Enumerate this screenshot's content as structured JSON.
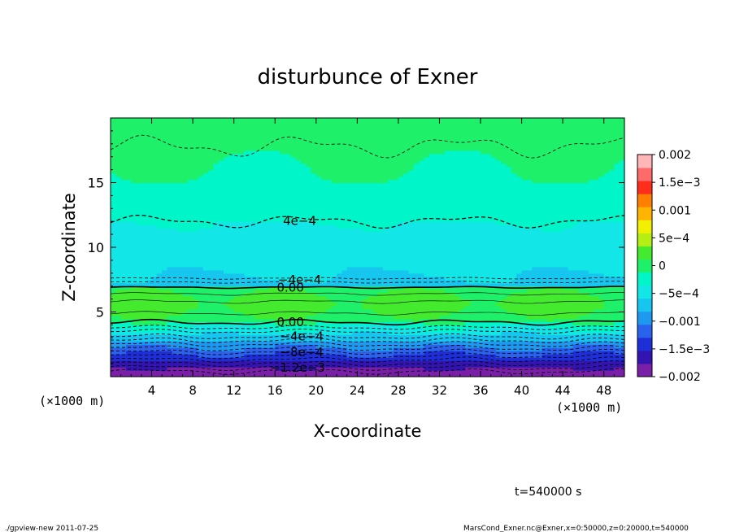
{
  "chart_data": {
    "type": "heatmap",
    "title": "disturbunce of Exner",
    "xlabel": "X-coordinate",
    "ylabel": "Z-coordinate",
    "x_unit": "(×1000 m)",
    "y_unit": "(×1000 m)",
    "xlim": [
      0,
      50
    ],
    "ylim": [
      0,
      20
    ],
    "x_ticks": [
      4,
      8,
      12,
      16,
      20,
      24,
      28,
      32,
      36,
      40,
      44,
      48
    ],
    "y_ticks": [
      5,
      10,
      15
    ],
    "colorbar": {
      "levels": [
        -0.002,
        -0.00175,
        -0.0015,
        -0.00125,
        -0.001,
        -0.00075,
        -0.0005,
        -0.00025,
        0,
        0.00025,
        0.0005,
        0.00075,
        0.001,
        0.00125,
        0.0015,
        0.00175,
        0.002
      ],
      "colors": [
        "#7a1fa8",
        "#3314b0",
        "#1e2fd8",
        "#2a62ee",
        "#1f98f0",
        "#16c6ee",
        "#12e6e6",
        "#00f5c8",
        "#1ff06a",
        "#44ea2e",
        "#b4ee14",
        "#f0f000",
        "#ffb400",
        "#ff8000",
        "#ff2e1c",
        "#ff6a6a",
        "#ffb6b6"
      ],
      "tick_labels": [
        "0.002",
        "1.5e−3",
        "0.001",
        "5e−4",
        "0",
        "−5e−4",
        "−0.001",
        "−1.5e−3",
        "−0.002"
      ]
    },
    "contour_labels": [
      {
        "text": "4e−4",
        "x": 18.4,
        "z": 12.05
      },
      {
        "text": "−4e−4",
        "x": 18.4,
        "z": 7.5
      },
      {
        "text": "0.00",
        "x": 17.5,
        "z": 6.9
      },
      {
        "text": "0.00",
        "x": 17.5,
        "z": 4.2
      },
      {
        "text": "−4e−4",
        "x": 18.6,
        "z": 3.1
      },
      {
        "text": "−8e−4",
        "x": 18.6,
        "z": 1.9
      },
      {
        "text": "−1.2e−3",
        "x": 18.2,
        "z": 0.7
      }
    ],
    "time_label": "t=540000 s"
  },
  "footer": {
    "left": "./gpview-new  2011-07-25",
    "right": "MarsCond_Exner.nc@Exner,x=0:50000,z=0:20000,t=540000"
  }
}
